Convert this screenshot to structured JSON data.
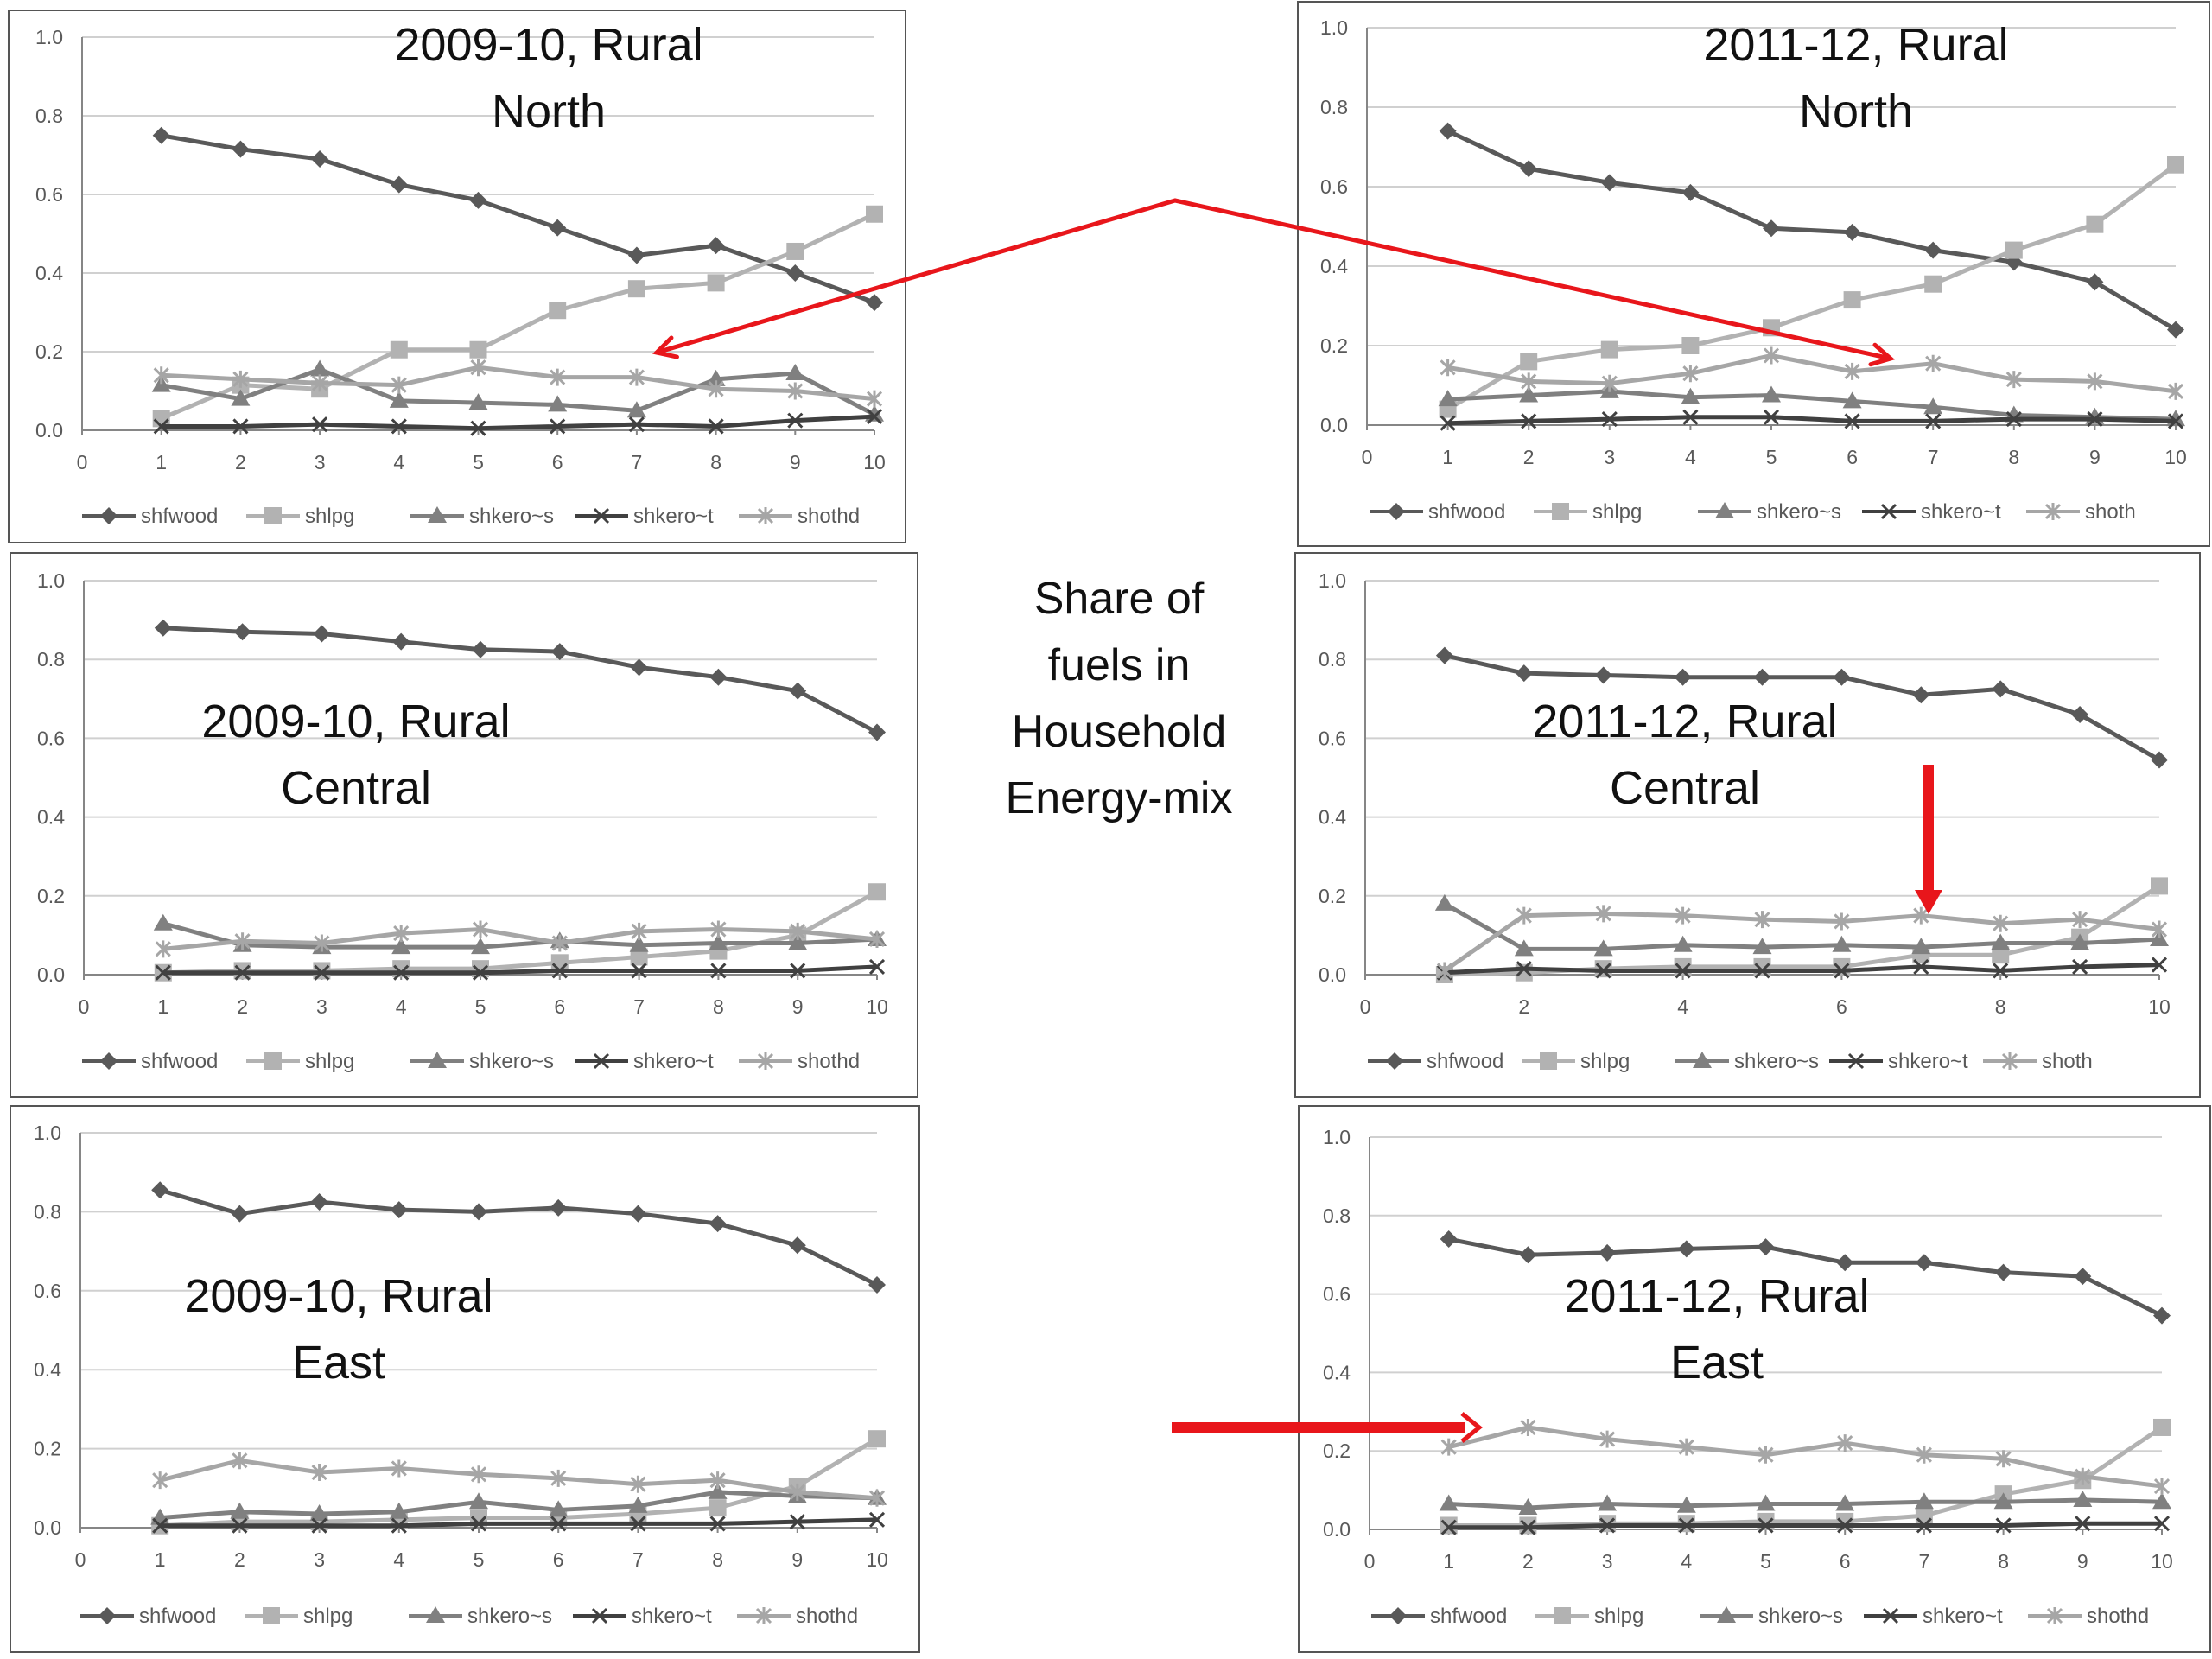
{
  "center_title": [
    "Share of",
    "fuels in",
    "Household",
    "Energy-mix"
  ],
  "colors": {
    "shfwood": "#595959",
    "shlpg": "#b2b2b2",
    "shkeros": "#808080",
    "shkerot": "#404040",
    "shoth": "#a6a6a6",
    "arrow": "#e8161b",
    "grid": "#d0d0d0",
    "axis": "#868686",
    "tick_text": "#595959",
    "border": "#555555"
  },
  "chart_data": [
    {
      "type": "line",
      "title": [
        "2009-10, Rural",
        "North"
      ],
      "x": [
        1,
        2,
        3,
        4,
        5,
        6,
        7,
        8,
        9,
        10
      ],
      "xlim": [
        0,
        10
      ],
      "x_ticks": [
        "0",
        "1",
        "2",
        "3",
        "4",
        "5",
        "6",
        "7",
        "8",
        "9",
        "10"
      ],
      "ylim": [
        0,
        1
      ],
      "y_ticks": [
        "0.0",
        "0.2",
        "0.4",
        "0.6",
        "0.8",
        "1.0"
      ],
      "grid": true,
      "legend": "bottom",
      "series": [
        {
          "name": "shfwood",
          "marker": "diamond",
          "values": [
            0.75,
            0.715,
            0.69,
            0.625,
            0.585,
            0.515,
            0.445,
            0.47,
            0.4,
            0.325
          ]
        },
        {
          "name": "shlpg",
          "marker": "square",
          "values": [
            0.03,
            0.115,
            0.105,
            0.205,
            0.205,
            0.305,
            0.36,
            0.375,
            0.455,
            0.55
          ]
        },
        {
          "name": "shkero~s",
          "marker": "triangle",
          "values": [
            0.115,
            0.08,
            0.155,
            0.075,
            0.07,
            0.065,
            0.05,
            0.13,
            0.145,
            0.04
          ]
        },
        {
          "name": "shkero~t",
          "marker": "x",
          "values": [
            0.01,
            0.01,
            0.015,
            0.01,
            0.005,
            0.01,
            0.015,
            0.01,
            0.025,
            0.035
          ]
        },
        {
          "name": "shothd",
          "marker": "star",
          "values": [
            0.14,
            0.13,
            0.12,
            0.115,
            0.16,
            0.135,
            0.135,
            0.105,
            0.1,
            0.08
          ]
        }
      ]
    },
    {
      "type": "line",
      "title": [
        "2011-12, Rural",
        "North"
      ],
      "x": [
        1,
        2,
        3,
        4,
        5,
        6,
        7,
        8,
        9,
        10
      ],
      "xlim": [
        0,
        10
      ],
      "x_ticks": [
        "0",
        "1",
        "2",
        "3",
        "4",
        "5",
        "6",
        "7",
        "8",
        "9",
        "10"
      ],
      "ylim": [
        0,
        1
      ],
      "y_ticks": [
        "0.0",
        "0.2",
        "0.4",
        "0.6",
        "0.8",
        "1.0"
      ],
      "grid": true,
      "legend": "bottom",
      "series": [
        {
          "name": "shfwood",
          "marker": "diamond",
          "values": [
            0.74,
            0.645,
            0.61,
            0.585,
            0.495,
            0.485,
            0.44,
            0.41,
            0.36,
            0.24
          ]
        },
        {
          "name": "shlpg",
          "marker": "square",
          "values": [
            0.04,
            0.16,
            0.19,
            0.2,
            0.245,
            0.315,
            0.355,
            0.44,
            0.505,
            0.655
          ]
        },
        {
          "name": "shkero~s",
          "marker": "triangle",
          "values": [
            0.065,
            0.075,
            0.085,
            0.07,
            0.075,
            0.06,
            0.045,
            0.025,
            0.02,
            0.015
          ]
        },
        {
          "name": "shkero~t",
          "marker": "x",
          "values": [
            0.005,
            0.01,
            0.015,
            0.02,
            0.02,
            0.01,
            0.01,
            0.015,
            0.015,
            0.01
          ]
        },
        {
          "name": "shoth",
          "marker": "star",
          "values": [
            0.145,
            0.11,
            0.105,
            0.13,
            0.175,
            0.135,
            0.155,
            0.115,
            0.11,
            0.085
          ]
        }
      ]
    },
    {
      "type": "line",
      "title": [
        "2009-10, Rural",
        "Central"
      ],
      "x": [
        1,
        2,
        3,
        4,
        5,
        6,
        7,
        8,
        9,
        10
      ],
      "xlim": [
        0,
        10
      ],
      "x_ticks": [
        "0",
        "1",
        "2",
        "3",
        "4",
        "5",
        "6",
        "7",
        "8",
        "9",
        "10"
      ],
      "ylim": [
        0,
        1
      ],
      "y_ticks": [
        "0.0",
        "0.2",
        "0.4",
        "0.6",
        "0.8",
        "1.0"
      ],
      "grid": true,
      "legend": "bottom",
      "series": [
        {
          "name": "shfwood",
          "marker": "diamond",
          "values": [
            0.88,
            0.87,
            0.865,
            0.845,
            0.825,
            0.82,
            0.78,
            0.755,
            0.72,
            0.615
          ]
        },
        {
          "name": "shlpg",
          "marker": "square",
          "values": [
            0.005,
            0.01,
            0.01,
            0.015,
            0.015,
            0.03,
            0.045,
            0.06,
            0.1,
            0.21
          ]
        },
        {
          "name": "shkero~s",
          "marker": "triangle",
          "values": [
            0.13,
            0.075,
            0.07,
            0.07,
            0.07,
            0.085,
            0.075,
            0.08,
            0.08,
            0.09
          ]
        },
        {
          "name": "shkero~t",
          "marker": "x",
          "values": [
            0.005,
            0.005,
            0.005,
            0.005,
            0.005,
            0.01,
            0.01,
            0.01,
            0.01,
            0.02
          ]
        },
        {
          "name": "shothd",
          "marker": "star",
          "values": [
            0.065,
            0.085,
            0.08,
            0.105,
            0.115,
            0.08,
            0.11,
            0.115,
            0.11,
            0.09
          ]
        }
      ]
    },
    {
      "type": "line",
      "title": [
        "2011-12, Rural",
        "Central"
      ],
      "x": [
        1,
        2,
        3,
        4,
        5,
        6,
        7,
        8,
        9,
        10
      ],
      "xlim": [
        0,
        10
      ],
      "x_ticks": [
        "0",
        "2",
        "4",
        "6",
        "8",
        "10"
      ],
      "ylim": [
        0,
        1
      ],
      "y_ticks": [
        "0.0",
        "0.2",
        "0.4",
        "0.6",
        "0.8",
        "1.0"
      ],
      "grid": true,
      "legend": "bottom",
      "series": [
        {
          "name": "shfwood",
          "marker": "diamond",
          "values": [
            0.81,
            0.765,
            0.76,
            0.755,
            0.755,
            0.755,
            0.71,
            0.725,
            0.66,
            0.545
          ]
        },
        {
          "name": "shlpg",
          "marker": "square",
          "values": [
            0.0,
            0.005,
            0.015,
            0.02,
            0.02,
            0.02,
            0.05,
            0.05,
            0.095,
            0.225
          ]
        },
        {
          "name": "shkero~s",
          "marker": "triangle",
          "values": [
            0.18,
            0.065,
            0.065,
            0.075,
            0.07,
            0.075,
            0.07,
            0.08,
            0.08,
            0.09
          ]
        },
        {
          "name": "shkero~t",
          "marker": "x",
          "values": [
            0.005,
            0.015,
            0.01,
            0.01,
            0.01,
            0.01,
            0.02,
            0.01,
            0.02,
            0.025
          ]
        },
        {
          "name": "shoth",
          "marker": "star",
          "values": [
            0.01,
            0.15,
            0.155,
            0.15,
            0.14,
            0.135,
            0.15,
            0.13,
            0.14,
            0.115
          ]
        }
      ]
    },
    {
      "type": "line",
      "title": [
        "2009-10, Rural",
        "East"
      ],
      "x": [
        1,
        2,
        3,
        4,
        5,
        6,
        7,
        8,
        9,
        10
      ],
      "xlim": [
        0,
        10
      ],
      "x_ticks": [
        "0",
        "1",
        "2",
        "3",
        "4",
        "5",
        "6",
        "7",
        "8",
        "9",
        "10"
      ],
      "ylim": [
        0,
        1
      ],
      "y_ticks": [
        "0.0",
        "0.2",
        "0.4",
        "0.6",
        "0.8",
        "1.0"
      ],
      "grid": true,
      "legend": "bottom",
      "series": [
        {
          "name": "shfwood",
          "marker": "diamond",
          "values": [
            0.855,
            0.795,
            0.825,
            0.805,
            0.8,
            0.81,
            0.795,
            0.77,
            0.715,
            0.615
          ]
        },
        {
          "name": "shlpg",
          "marker": "square",
          "values": [
            0.005,
            0.015,
            0.015,
            0.02,
            0.025,
            0.025,
            0.035,
            0.05,
            0.105,
            0.225
          ]
        },
        {
          "name": "shkero~s",
          "marker": "triangle",
          "values": [
            0.025,
            0.04,
            0.035,
            0.04,
            0.065,
            0.045,
            0.055,
            0.09,
            0.08,
            0.075
          ]
        },
        {
          "name": "shkero~t",
          "marker": "x",
          "values": [
            0.005,
            0.005,
            0.005,
            0.005,
            0.01,
            0.01,
            0.01,
            0.01,
            0.015,
            0.02
          ]
        },
        {
          "name": "shothd",
          "marker": "star",
          "values": [
            0.12,
            0.17,
            0.14,
            0.15,
            0.135,
            0.125,
            0.11,
            0.12,
            0.09,
            0.075
          ]
        }
      ]
    },
    {
      "type": "line",
      "title": [
        "2011-12, Rural",
        "East"
      ],
      "x": [
        1,
        2,
        3,
        4,
        5,
        6,
        7,
        8,
        9,
        10
      ],
      "xlim": [
        0,
        10
      ],
      "x_ticks": [
        "0",
        "1",
        "2",
        "3",
        "4",
        "5",
        "6",
        "7",
        "8",
        "9",
        "10"
      ],
      "ylim": [
        0,
        1
      ],
      "y_ticks": [
        "0.0",
        "0.2",
        "0.4",
        "0.6",
        "0.8",
        "1.0"
      ],
      "grid": true,
      "legend": "bottom",
      "series": [
        {
          "name": "shfwood",
          "marker": "diamond",
          "values": [
            0.74,
            0.7,
            0.705,
            0.715,
            0.72,
            0.68,
            0.68,
            0.655,
            0.645,
            0.545
          ]
        },
        {
          "name": "shlpg",
          "marker": "square",
          "values": [
            0.01,
            0.01,
            0.015,
            0.015,
            0.02,
            0.02,
            0.035,
            0.09,
            0.125,
            0.26
          ]
        },
        {
          "name": "shkero~s",
          "marker": "triangle",
          "values": [
            0.065,
            0.055,
            0.065,
            0.06,
            0.065,
            0.065,
            0.07,
            0.07,
            0.075,
            0.07
          ]
        },
        {
          "name": "shkero~t",
          "marker": "x",
          "values": [
            0.005,
            0.005,
            0.01,
            0.01,
            0.01,
            0.01,
            0.01,
            0.01,
            0.015,
            0.015
          ]
        },
        {
          "name": "shothd",
          "marker": "star",
          "values": [
            0.21,
            0.26,
            0.23,
            0.21,
            0.19,
            0.22,
            0.19,
            0.18,
            0.135,
            0.11
          ]
        }
      ]
    }
  ]
}
